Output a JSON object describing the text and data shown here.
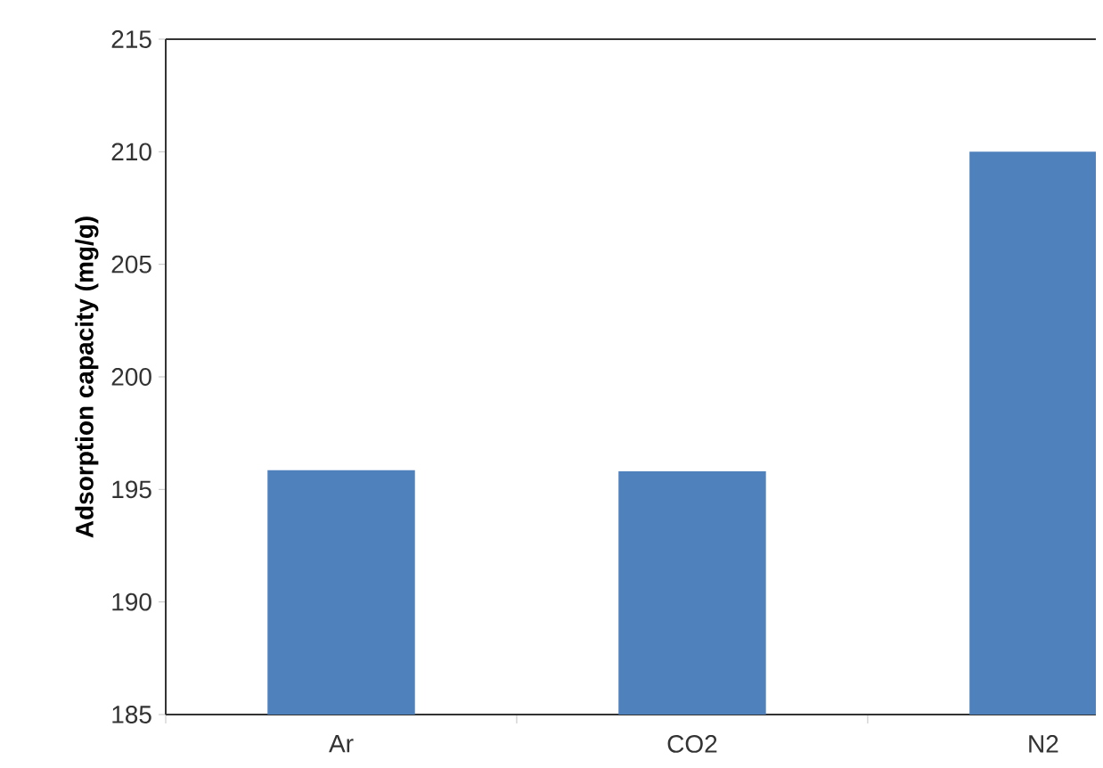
{
  "chart_data": {
    "type": "bar",
    "ylabel": "Adsorption capacity (mg/g)",
    "categories": [
      "Ar",
      "CO2",
      "N2"
    ],
    "values": [
      195.85,
      195.8,
      210
    ],
    "color": "#4f81bd",
    "ylim": [
      185,
      215
    ],
    "yticks": [
      185,
      190,
      195,
      200,
      205,
      210,
      215
    ]
  }
}
